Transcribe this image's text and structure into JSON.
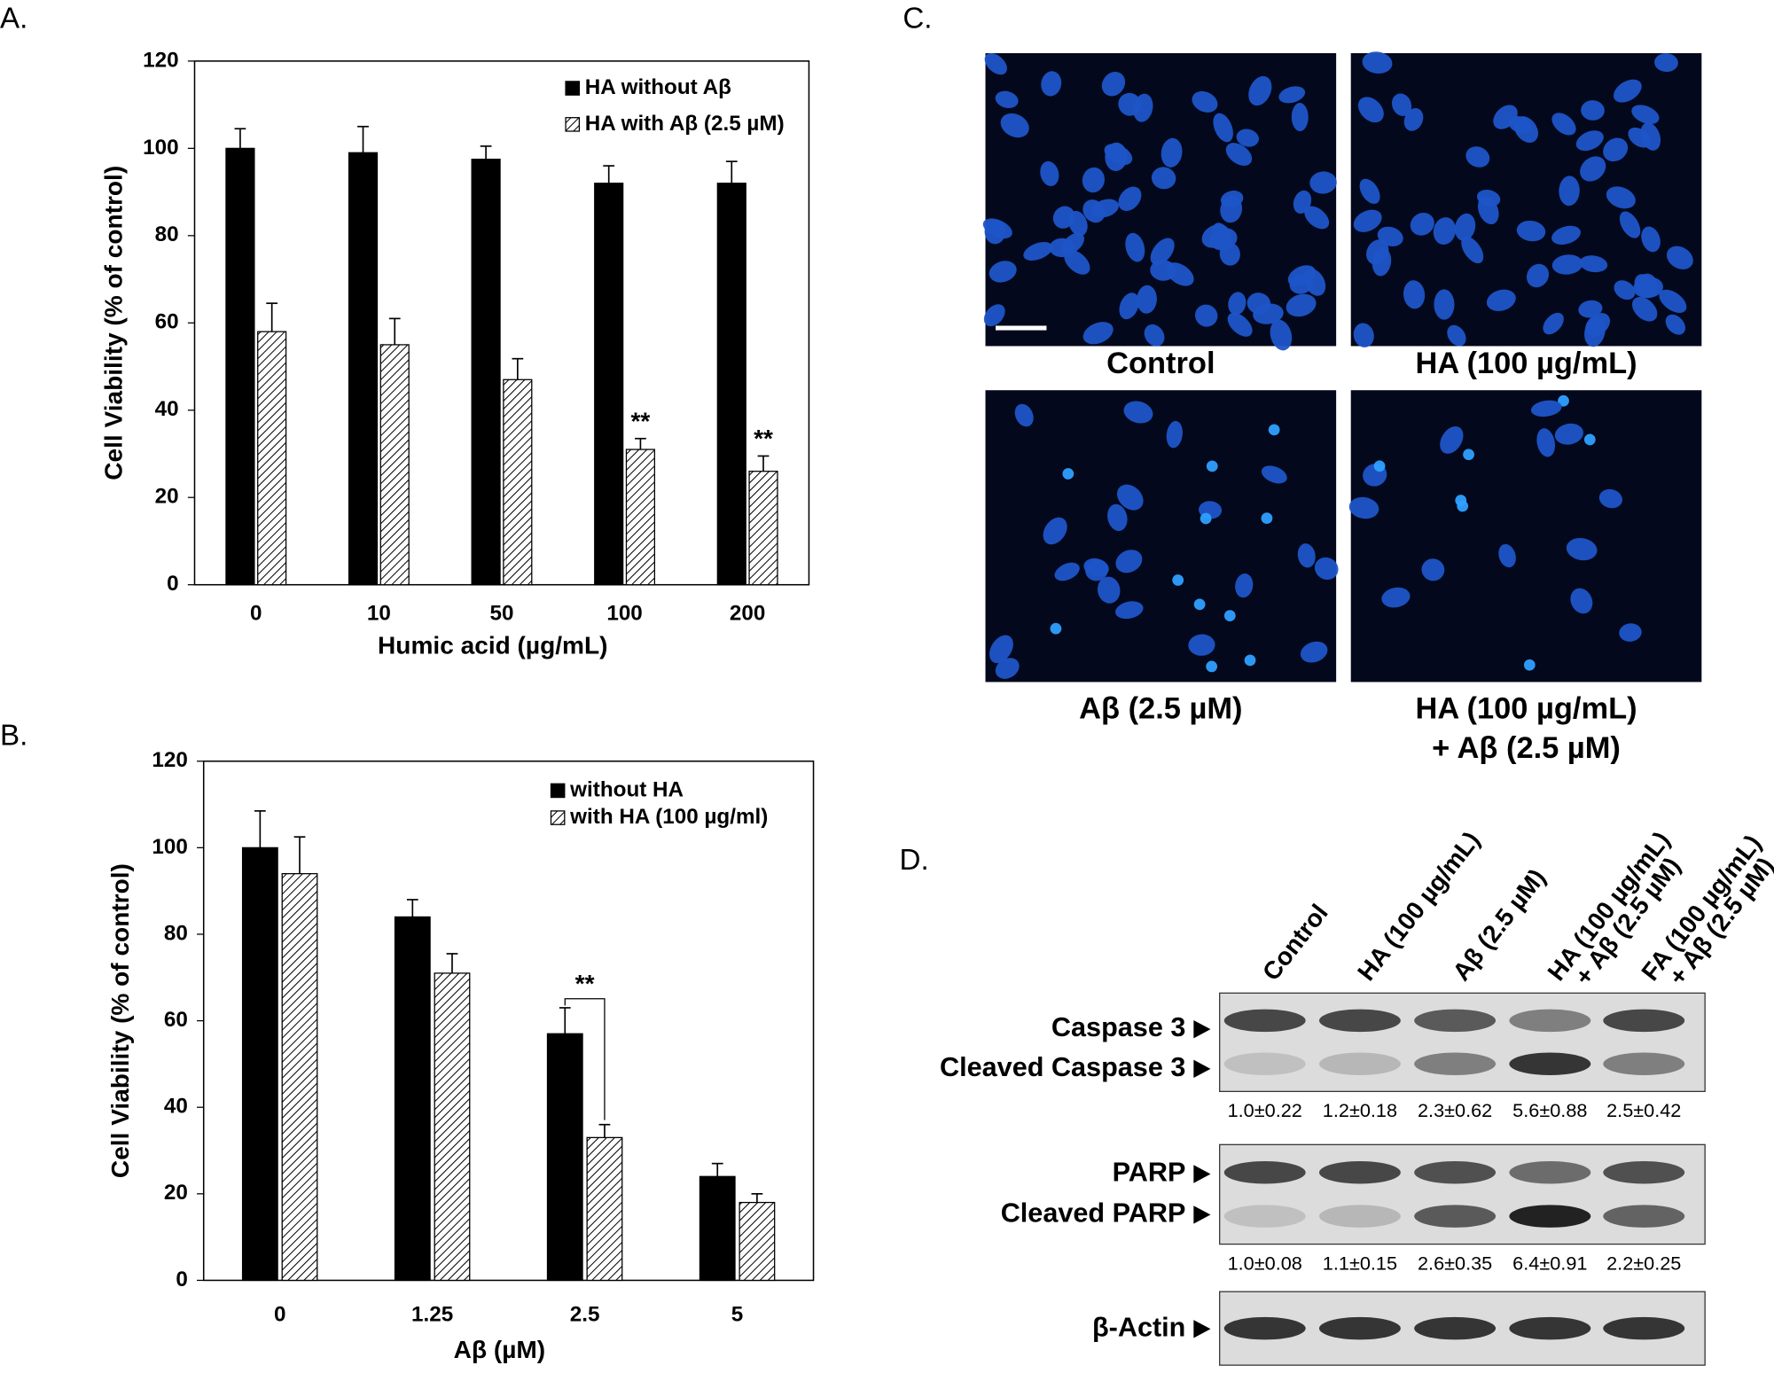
{
  "chart_data": [
    {
      "type": "bar",
      "panel": "A.",
      "x_label": "Humic acid (µg/mL)",
      "y_label": "Cell Viability (% of control)",
      "categories": [
        "0",
        "10",
        "50",
        "100",
        "200"
      ],
      "ylim": [
        0,
        120
      ],
      "yticks": [
        0,
        20,
        40,
        60,
        80,
        100,
        120
      ],
      "series": [
        {
          "name": "HA without Aβ",
          "color": "#000000",
          "pattern": "solid",
          "values": [
            100,
            99,
            97.5,
            92,
            92
          ],
          "errors": [
            4.5,
            6,
            3,
            4,
            5
          ]
        },
        {
          "name": "HA with Aβ (2.5 µM)",
          "color": "#000000",
          "pattern": "hatch",
          "values": [
            58,
            55,
            47,
            31,
            26
          ],
          "errors": [
            6.5,
            6,
            4.8,
            2.5,
            3.5
          ],
          "significance": [
            null,
            null,
            null,
            "**",
            "**"
          ]
        }
      ]
    },
    {
      "type": "bar",
      "panel": "B.",
      "x_label": "Aβ (µM)",
      "y_label": "Cell Viability (% of control)",
      "categories": [
        "0",
        "1.25",
        "2.5",
        "5"
      ],
      "ylim": [
        0,
        120
      ],
      "yticks": [
        0,
        20,
        40,
        60,
        80,
        100,
        120
      ],
      "significance_bracket": true,
      "series": [
        {
          "name": "without HA",
          "color": "#000000",
          "pattern": "solid",
          "values": [
            100,
            84,
            57,
            24
          ],
          "errors": [
            8.5,
            4,
            6,
            3
          ]
        },
        {
          "name": "with HA (100 µg/ml)",
          "color": "#000000",
          "pattern": "hatch",
          "values": [
            94,
            71,
            33,
            18
          ],
          "errors": [
            8.5,
            4.5,
            3,
            2
          ],
          "significance": [
            null,
            null,
            "**",
            null
          ]
        }
      ]
    }
  ],
  "microscopy": {
    "panel": "C.",
    "images": [
      {
        "caption": [
          "Control"
        ]
      },
      {
        "caption": [
          "HA (100 µg/mL)"
        ]
      },
      {
        "caption": [
          "Aβ (2.5 µM)"
        ]
      },
      {
        "caption": [
          "HA (100 µg/mL)",
          "+ Aβ (2.5 µM)"
        ]
      }
    ]
  },
  "western_blot": {
    "panel": "D.",
    "lanes": [
      [
        "Control"
      ],
      [
        "HA (100 µg/mL)"
      ],
      [
        "Aβ (2.5 µM)"
      ],
      [
        "HA (100 µg/mL)",
        "+ Aβ (2.5 µM)"
      ],
      [
        "FA (100 µg/mL)",
        "+ Aβ (2.5 µM)"
      ]
    ],
    "blots": [
      {
        "bands": [
          "Caspase 3",
          "Cleaved Caspase 3"
        ],
        "quantification": [
          "1.0±0.22",
          "1.2±0.18",
          "2.3±0.62",
          "5.6±0.88",
          "2.5±0.42"
        ]
      },
      {
        "bands": [
          "PARP",
          "Cleaved PARP"
        ],
        "quantification": [
          "1.0±0.08",
          "1.1±0.15",
          "2.6±0.35",
          "6.4±0.91",
          "2.2±0.25"
        ]
      },
      {
        "bands": [
          "β-Actin"
        ]
      }
    ]
  }
}
